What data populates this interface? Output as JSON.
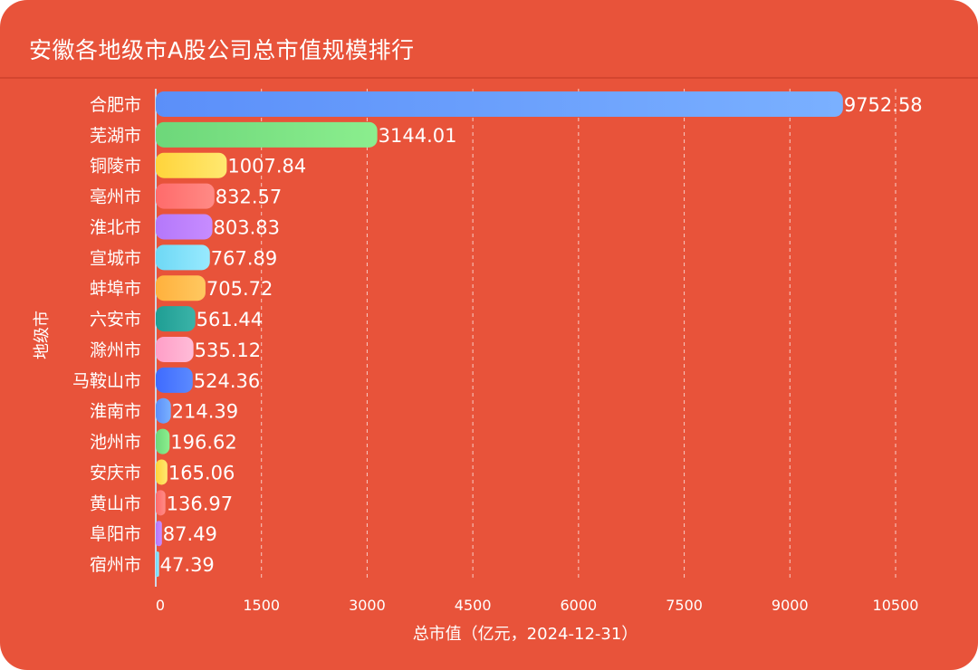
{
  "header": {
    "title": "安徽各地级市A股公司总市值规模排行"
  },
  "chart_data": {
    "type": "bar",
    "orientation": "horizontal",
    "title": "安徽各地级市A股公司总市值规模排行",
    "xlabel": "总市值（亿元，2024-12-31）",
    "ylabel": "地级市",
    "xlim": [
      0,
      10500
    ],
    "xticks": [
      "0",
      "1500",
      "3000",
      "4500",
      "6000",
      "7500",
      "9000",
      "10500"
    ],
    "grid": "vertical-dashed",
    "categories": [
      "合肥市",
      "芜湖市",
      "铜陵市",
      "亳州市",
      "淮北市",
      "宣城市",
      "蚌埠市",
      "六安市",
      "滁州市",
      "马鞍山市",
      "淮南市",
      "池州市",
      "安庆市",
      "黄山市",
      "阜阳市",
      "宿州市"
    ],
    "values": [
      9752.58,
      3144.01,
      1007.84,
      832.57,
      803.83,
      767.89,
      705.72,
      561.44,
      535.12,
      524.36,
      214.39,
      196.62,
      165.06,
      136.97,
      87.49,
      47.39
    ],
    "value_labels": [
      "9752.58",
      "3144.01",
      "1007.84",
      "832.57",
      "803.83",
      "767.89",
      "705.72",
      "561.44",
      "535.12",
      "524.36",
      "214.39",
      "196.62",
      "165.06",
      "136.97",
      "87.49",
      "47.39"
    ],
    "colors": [
      "#5B8FF9",
      "#6DD77A",
      "#FFD43B",
      "#FF6B6B",
      "#B478FA",
      "#6ED8F5",
      "#FFB13D",
      "#1F9E94",
      "#FF9EC7",
      "#3F6BFF"
    ],
    "colors_light": [
      "#7AB0FF",
      "#8BEE8E",
      "#FFE870",
      "#FF8A85",
      "#C78CFF",
      "#98EAFF",
      "#FFC860",
      "#3BB3A8",
      "#FFBCD8",
      "#5B8AFF"
    ]
  }
}
